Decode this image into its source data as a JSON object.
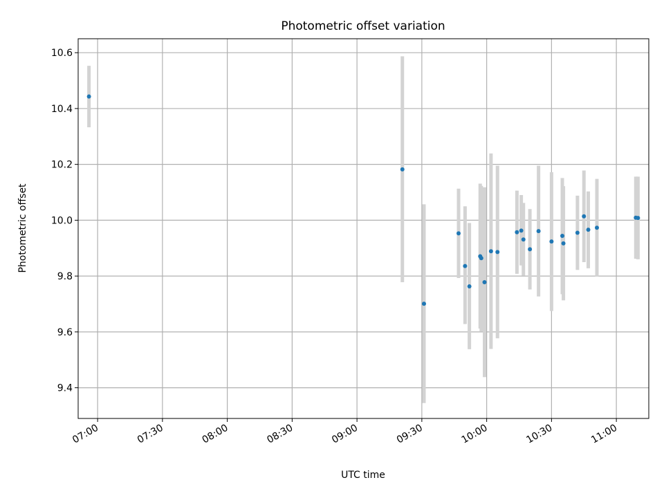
{
  "chart_data": {
    "type": "scatter",
    "title": "Photometric offset variation",
    "xlabel": "UTC time",
    "ylabel": "Photometric offset",
    "x_ticks": [
      "07:00",
      "07:30",
      "08:00",
      "08:30",
      "09:00",
      "09:30",
      "10:00",
      "10:30",
      "11:00"
    ],
    "y_ticks": [
      "9.4",
      "9.6",
      "9.8",
      "10.0",
      "10.2",
      "10.4",
      "10.6"
    ],
    "xlim": [
      "06:51",
      "11:15"
    ],
    "ylim": [
      9.29,
      10.65
    ],
    "grid": true,
    "colors": {
      "point": "#1f77b4",
      "errorbar": "#d3d3d3",
      "grid": "#b0b0b0"
    },
    "points": [
      {
        "x": "06:56",
        "y": 10.443,
        "err_low": 10.333,
        "err_high": 10.553
      },
      {
        "x": "09:21",
        "y": 10.182,
        "err_low": 9.778,
        "err_high": 10.587
      },
      {
        "x": "09:31",
        "y": 9.701,
        "err_low": 9.345,
        "err_high": 10.057
      },
      {
        "x": "09:47",
        "y": 9.953,
        "err_low": 9.793,
        "err_high": 10.113
      },
      {
        "x": "09:50",
        "y": 9.836,
        "err_low": 9.628,
        "err_high": 10.05
      },
      {
        "x": "09:52",
        "y": 9.763,
        "err_low": 9.538,
        "err_high": 9.99
      },
      {
        "x": "09:57",
        "y": 9.871,
        "err_low": 9.612,
        "err_high": 10.131
      },
      {
        "x": "09:57.5",
        "y": 9.864,
        "err_low": 9.602,
        "err_high": 10.123
      },
      {
        "x": "09:59",
        "y": 9.778,
        "err_low": 9.438,
        "err_high": 10.118
      },
      {
        "x": "10:02",
        "y": 9.889,
        "err_low": 9.539,
        "err_high": 10.239
      },
      {
        "x": "10:05",
        "y": 9.886,
        "err_low": 9.577,
        "err_high": 10.195
      },
      {
        "x": "10:14",
        "y": 9.957,
        "err_low": 9.808,
        "err_high": 10.106
      },
      {
        "x": "10:16",
        "y": 9.963,
        "err_low": 9.838,
        "err_high": 10.09
      },
      {
        "x": "10:17",
        "y": 9.931,
        "err_low": 9.801,
        "err_high": 10.062
      },
      {
        "x": "10:20",
        "y": 9.896,
        "err_low": 9.752,
        "err_high": 10.04
      },
      {
        "x": "10:24",
        "y": 9.961,
        "err_low": 9.727,
        "err_high": 10.195
      },
      {
        "x": "10:30",
        "y": 9.924,
        "err_low": 9.675,
        "err_high": 10.172
      },
      {
        "x": "10:35",
        "y": 9.944,
        "err_low": 9.735,
        "err_high": 10.151
      },
      {
        "x": "10:35.5",
        "y": 9.917,
        "err_low": 9.713,
        "err_high": 10.122
      },
      {
        "x": "10:42",
        "y": 9.955,
        "err_low": 9.822,
        "err_high": 10.088
      },
      {
        "x": "10:45",
        "y": 10.014,
        "err_low": 9.85,
        "err_high": 10.178
      },
      {
        "x": "10:47",
        "y": 9.966,
        "err_low": 9.828,
        "err_high": 10.103
      },
      {
        "x": "10:51",
        "y": 9.973,
        "err_low": 9.798,
        "err_high": 10.148
      },
      {
        "x": "11:09",
        "y": 10.009,
        "err_low": 9.862,
        "err_high": 10.156
      },
      {
        "x": "11:10",
        "y": 10.008,
        "err_low": 9.86,
        "err_high": 10.156
      }
    ]
  }
}
